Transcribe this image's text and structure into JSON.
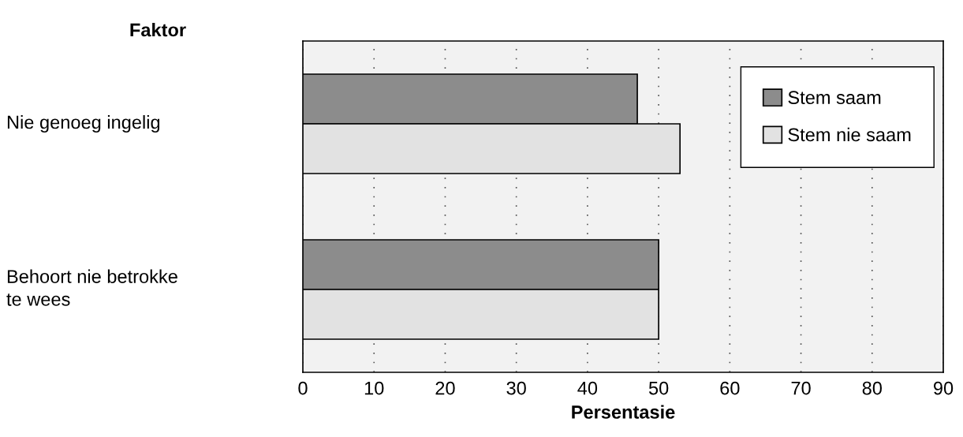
{
  "chart_data": {
    "type": "bar",
    "orientation": "horizontal",
    "ylabel": "Faktor",
    "xlabel": "Persentasie",
    "categories": [
      "Nie genoeg ingelig",
      "Behoort nie betrokke\nte wees"
    ],
    "series": [
      {
        "name": "Stem saam",
        "color": "#8c8c8c",
        "values": [
          47,
          50
        ]
      },
      {
        "name": "Stem nie saam",
        "color": "#e2e2e2",
        "values": [
          53,
          50
        ]
      }
    ],
    "xlim": [
      0,
      90
    ],
    "xticks": [
      0,
      10,
      20,
      30,
      40,
      50,
      60,
      70,
      80,
      90
    ],
    "grid": "x",
    "legend": "top right"
  }
}
